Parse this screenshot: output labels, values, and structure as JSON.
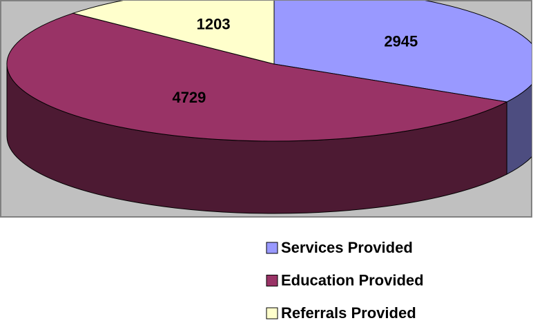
{
  "chart_data": {
    "type": "pie",
    "categories": [
      "Services Provided",
      "Education Provided",
      "Referrals Provided"
    ],
    "values": [
      2945,
      4729,
      1203
    ],
    "colors": [
      "#9999ff",
      "#993366",
      "#ffffcc"
    ],
    "side_colors": [
      "#4d4d80",
      "#4d1a33",
      "#80806a"
    ]
  }
}
